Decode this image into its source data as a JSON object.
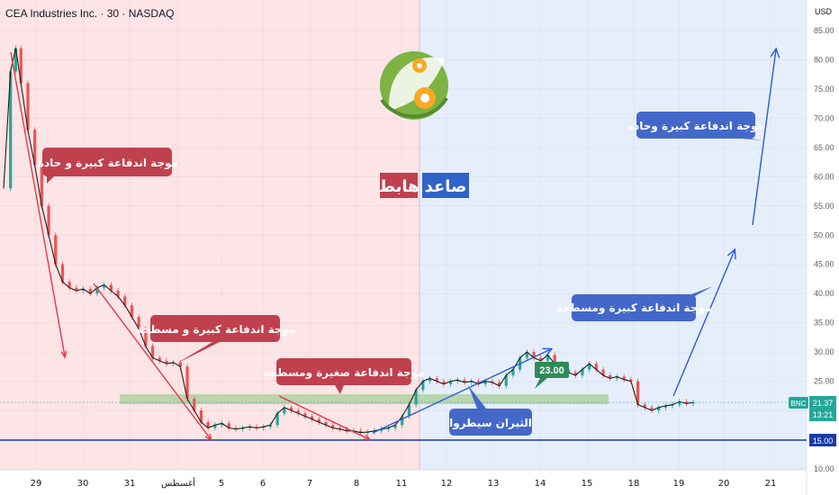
{
  "header": {
    "title": "CEA Industries Inc. · 30 · NASDAQ",
    "currency": "USD"
  },
  "colors": {
    "bear_zone": "#fde4e6",
    "bull_zone": "#e6eefb",
    "bear_arrow": "#e23a48",
    "bull_arrow": "#2a5bd7",
    "bear_box": "#c0404e",
    "bull_box": "#4468c9",
    "support_band": "#a8cf98",
    "support_line": "#1a3aa8",
    "candle_up": "#26a69a",
    "candle_down": "#ef5350",
    "price_tag": "#26a69a"
  },
  "zone_labels": {
    "bearish": "هابط",
    "bullish": "صاعد"
  },
  "annotations": {
    "bear_wave_1": "موجة اندفاعة كبيرة و حادة",
    "bear_wave_2": "موجة اندفاعة كبيرة و مسطحة",
    "bear_wave_3": "موجة اندفاعة صغيرة ومسطحة",
    "bulls_control": "الثيران سيطروا",
    "bull_wave_flat": "موجة اندفاعة كبيرة ومسطحة",
    "bull_wave_sharp": "موجة اندفاعة كبيرة وحادة",
    "target_price": "23.00"
  },
  "price_tags": {
    "current_price": "21.37",
    "countdown": "13:21",
    "symbol_badge": "BNC",
    "support_level": "15.00"
  },
  "chart_data": {
    "type": "candlestick",
    "title": "CEA Industries Inc. · 30 · NASDAQ",
    "y_axis": {
      "min": 10,
      "max": 85,
      "ticks": [
        85,
        80,
        75,
        70,
        65,
        60,
        55,
        50,
        45,
        40,
        35,
        30,
        25,
        20,
        15,
        10
      ],
      "tick_labels": [
        "85.00",
        "80.00",
        "75.00",
        "70.00",
        "65.00",
        "60.00",
        "55.00",
        "50.00",
        "45.00",
        "40.00",
        "35.00",
        "30.00",
        "25.00",
        "20.00",
        "15.00",
        "10.00"
      ]
    },
    "x_axis": {
      "tick_labels": [
        "29",
        "30",
        "31",
        "أغسطس",
        "5",
        "6",
        "7",
        "8",
        "11",
        "12",
        "13",
        "14",
        "15",
        "18",
        "19",
        "20",
        "21"
      ]
    },
    "close_path": [
      [
        0,
        58
      ],
      [
        0.2,
        78
      ],
      [
        0.35,
        82
      ],
      [
        0.5,
        76
      ],
      [
        0.7,
        68
      ],
      [
        0.9,
        62
      ],
      [
        1.1,
        55
      ],
      [
        1.3,
        50
      ],
      [
        1.5,
        45
      ],
      [
        1.7,
        42
      ],
      [
        1.9,
        41
      ],
      [
        2.1,
        40.5
      ],
      [
        2.3,
        40.8
      ],
      [
        2.5,
        40
      ],
      [
        2.7,
        41
      ],
      [
        2.9,
        41.5
      ],
      [
        3.1,
        40.5
      ],
      [
        3.3,
        39.5
      ],
      [
        3.5,
        38
      ],
      [
        3.7,
        36
      ],
      [
        3.9,
        34
      ],
      [
        4.1,
        31
      ],
      [
        4.3,
        29
      ],
      [
        4.5,
        28.5
      ],
      [
        4.7,
        28
      ],
      [
        4.9,
        28.2
      ],
      [
        5.1,
        27.5
      ],
      [
        5.3,
        22
      ],
      [
        5.5,
        20
      ],
      [
        5.7,
        18
      ],
      [
        5.9,
        17
      ],
      [
        6.1,
        17.5
      ],
      [
        6.3,
        17.8
      ],
      [
        6.5,
        17
      ],
      [
        6.7,
        16.8
      ],
      [
        6.9,
        17
      ],
      [
        7.1,
        17.2
      ],
      [
        7.3,
        17
      ],
      [
        7.5,
        17.2
      ],
      [
        7.7,
        17.5
      ],
      [
        7.9,
        19.5
      ],
      [
        8.1,
        20.5
      ],
      [
        8.3,
        20
      ],
      [
        8.5,
        19.5
      ],
      [
        8.7,
        19
      ],
      [
        8.9,
        18.5
      ],
      [
        9.1,
        18
      ],
      [
        9.3,
        17.5
      ],
      [
        9.5,
        17
      ],
      [
        9.7,
        16.8
      ],
      [
        9.9,
        16.5
      ],
      [
        10.1,
        16.5
      ],
      [
        10.3,
        16.2
      ],
      [
        10.5,
        16.3
      ],
      [
        10.7,
        16.5
      ],
      [
        10.9,
        16.8
      ],
      [
        11.1,
        17
      ],
      [
        11.3,
        17.5
      ],
      [
        11.5,
        19
      ],
      [
        11.7,
        21
      ],
      [
        11.9,
        23.5
      ],
      [
        12.1,
        25
      ],
      [
        12.3,
        25.5
      ],
      [
        12.5,
        25
      ],
      [
        12.7,
        24.5
      ],
      [
        12.9,
        25
      ],
      [
        13.1,
        25.2
      ],
      [
        13.3,
        24.8
      ],
      [
        13.5,
        25
      ],
      [
        13.7,
        24.5
      ],
      [
        13.9,
        25
      ],
      [
        14.1,
        24.8
      ],
      [
        14.3,
        24.2
      ],
      [
        14.5,
        26
      ],
      [
        14.7,
        27
      ],
      [
        14.9,
        29
      ],
      [
        15.1,
        30
      ],
      [
        15.3,
        29
      ],
      [
        15.5,
        28.5
      ],
      [
        15.7,
        29.5
      ],
      [
        15.9,
        28
      ],
      [
        16.1,
        27
      ],
      [
        16.3,
        26.5
      ],
      [
        16.5,
        26
      ],
      [
        16.7,
        27
      ],
      [
        16.9,
        28
      ],
      [
        17.1,
        27
      ],
      [
        17.3,
        26
      ],
      [
        17.5,
        25.5
      ],
      [
        17.7,
        25.8
      ],
      [
        17.9,
        25.3
      ],
      [
        18.1,
        25
      ],
      [
        18.3,
        21
      ],
      [
        18.5,
        20.5
      ],
      [
        18.7,
        20
      ],
      [
        18.9,
        20.5
      ],
      [
        19.1,
        20.8
      ],
      [
        19.3,
        21
      ],
      [
        19.5,
        21.5
      ],
      [
        19.7,
        21.2
      ],
      [
        19.9,
        21.37
      ]
    ]
  }
}
